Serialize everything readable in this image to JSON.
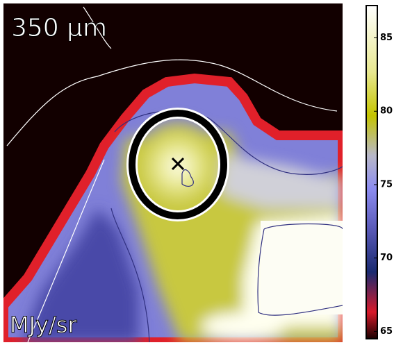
{
  "image": {
    "band_label": "350 μm",
    "unit_label": "MJy/sr"
  },
  "colorbar": {
    "range": [
      64.5,
      87.2
    ],
    "ticks": [
      65,
      70,
      75,
      80,
      85
    ]
  }
}
